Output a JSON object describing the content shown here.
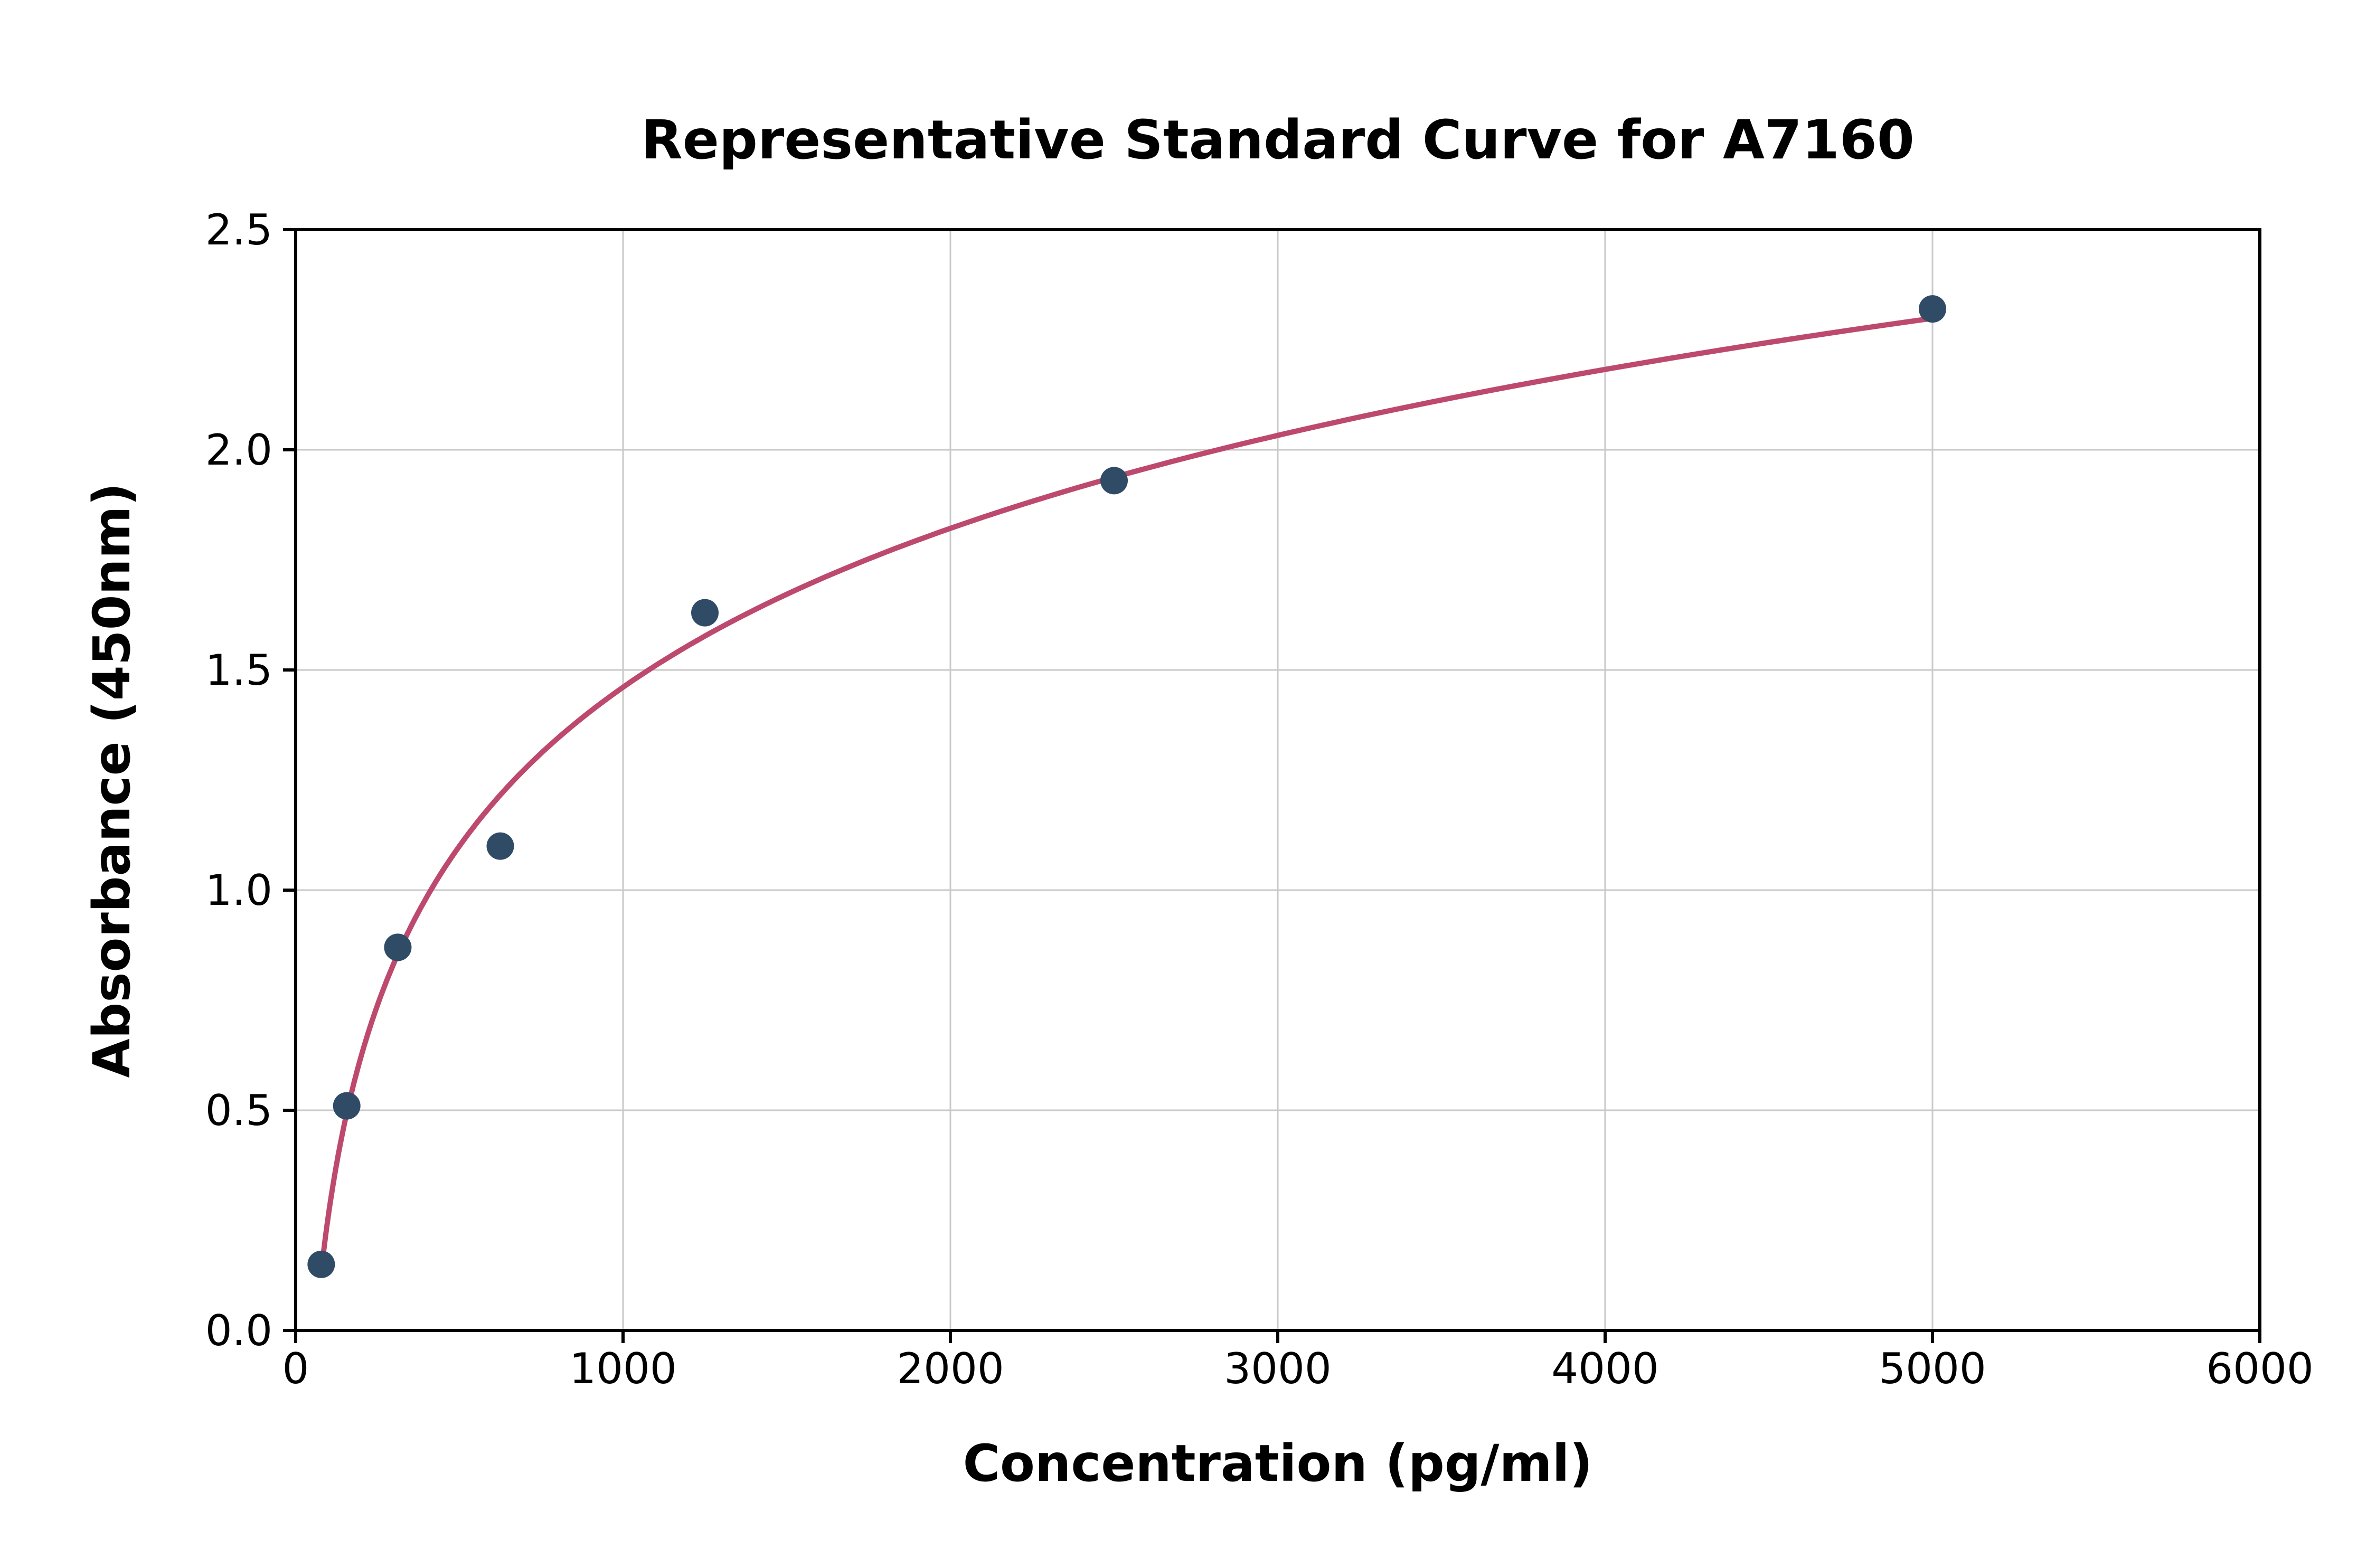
{
  "chart_data": {
    "type": "scatter",
    "title": "Representative Standard Curve for A7160",
    "xlabel": "Concentration (pg/ml)",
    "ylabel": "Absorbance (450nm)",
    "x": [
      78,
      156,
      312,
      625,
      1250,
      2500,
      5000
    ],
    "y": [
      0.15,
      0.51,
      0.87,
      1.1,
      1.63,
      1.93,
      2.32
    ],
    "xlim": [
      0,
      6000
    ],
    "ylim": [
      0,
      2.5
    ],
    "x_ticks": [
      0,
      1000,
      2000,
      3000,
      4000,
      5000,
      6000
    ],
    "x_tick_labels": [
      "0",
      "1000",
      "2000",
      "3000",
      "4000",
      "5000",
      "6000"
    ],
    "y_ticks": [
      0,
      0.5,
      1.0,
      1.5,
      2.0,
      2.5
    ],
    "y_tick_labels": [
      "0.0",
      "0.5",
      "1.0",
      "1.5",
      "2.0",
      "2.5"
    ],
    "grid": true,
    "legend": "none",
    "trendline": {
      "type": "logarithmic",
      "color": "#bd4a6e"
    },
    "marker_color": "#2f4b66",
    "grid_color": "#c9c9c9",
    "frame_color": "#000000"
  }
}
